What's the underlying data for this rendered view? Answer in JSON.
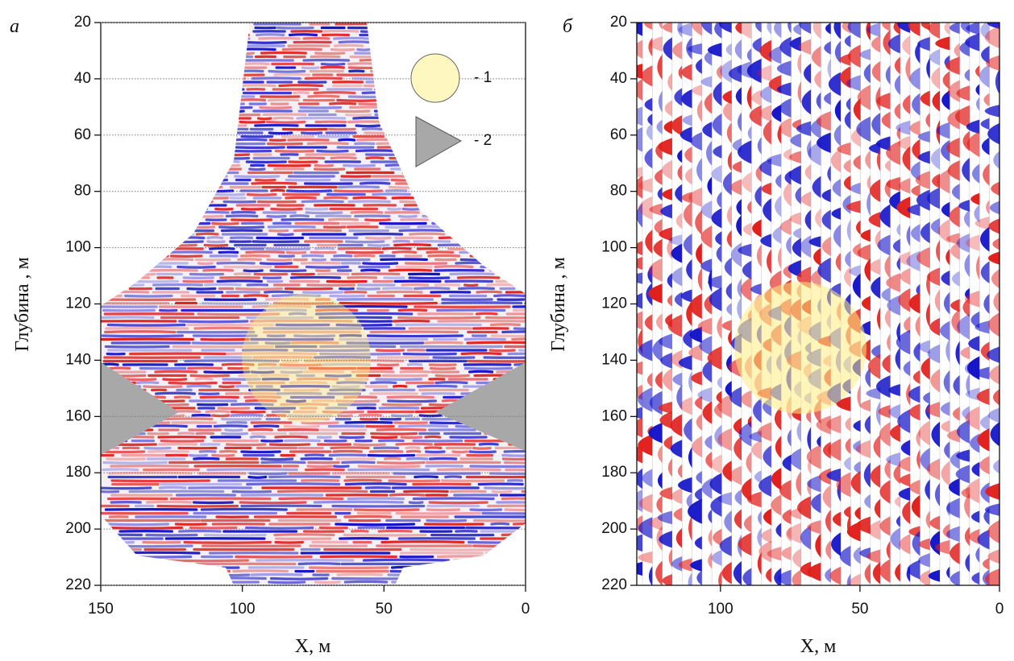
{
  "chart_data": [
    {
      "type": "seismic",
      "panel_label": "а",
      "ylabel": "Глубина , м",
      "xlabel": "X, м",
      "xlim": [
        150,
        0
      ],
      "ylim": [
        20,
        220
      ],
      "y_inverted": true,
      "xticks": [
        150,
        100,
        50,
        0
      ],
      "yticks": [
        20,
        40,
        60,
        80,
        100,
        120,
        140,
        160,
        180,
        200,
        220
      ],
      "grid": true,
      "legend": [
        {
          "label": "- 1"
        },
        {
          "label": "- 2"
        }
      ]
    },
    {
      "type": "seismic",
      "panel_label": "б",
      "ylabel": "Глубина , м",
      "xlabel": "X, м",
      "xlim": [
        130,
        0
      ],
      "ylim": [
        20,
        220
      ],
      "y_inverted": true,
      "xticks": [
        100,
        50,
        0
      ],
      "yticks": [
        20,
        40,
        60,
        80,
        100,
        120,
        140,
        160,
        180,
        200,
        220
      ],
      "grid": false
    }
  ]
}
